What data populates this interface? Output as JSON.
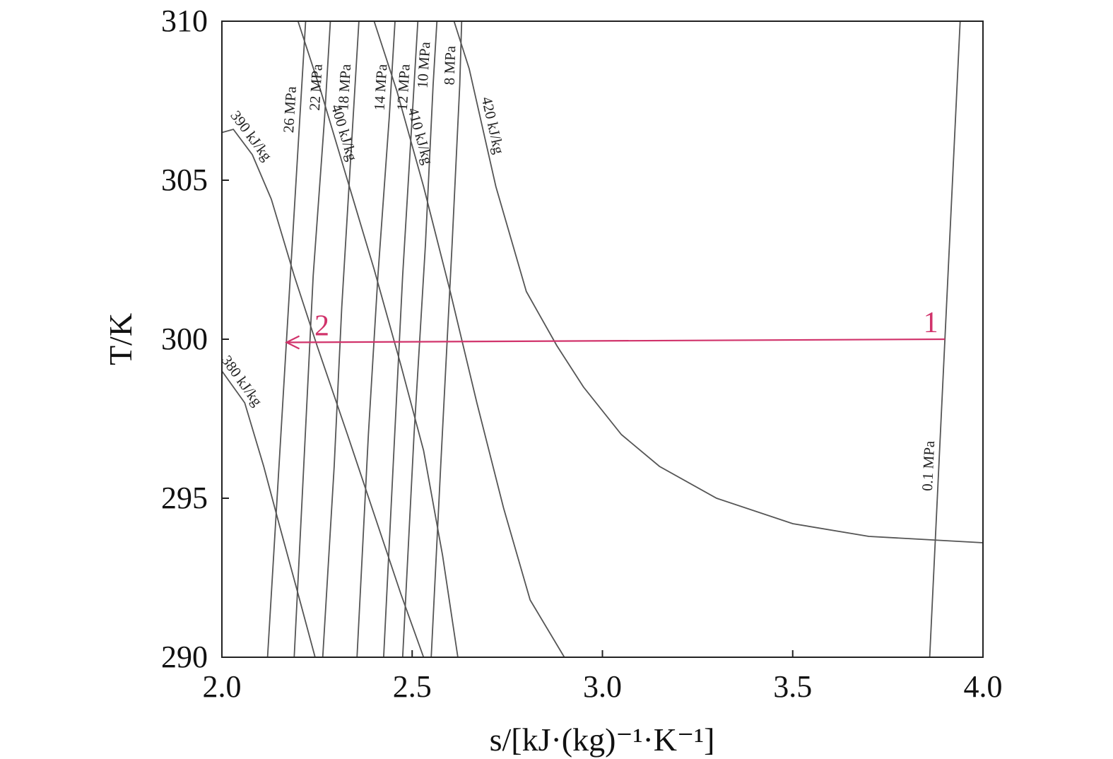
{
  "chart_data": {
    "type": "line",
    "title": "",
    "xlabel": "s/[kJ·(kg)⁻¹·K⁻¹]",
    "ylabel": "T/K",
    "xlim": [
      2.0,
      4.0
    ],
    "ylim": [
      290,
      310
    ],
    "x_ticks": [
      "2.0",
      "2.5",
      "3.0",
      "3.5",
      "4.0"
    ],
    "y_ticks": [
      "290",
      "295",
      "300",
      "305",
      "310"
    ],
    "grid": false,
    "isobars": [
      {
        "label": "0.1 MPa",
        "points": [
          [
            3.86,
            290
          ],
          [
            3.94,
            310
          ]
        ]
      },
      {
        "label": "8 MPa",
        "points": [
          [
            2.55,
            290
          ],
          [
            2.575,
            296
          ],
          [
            2.605,
            303
          ],
          [
            2.625,
            308
          ],
          [
            2.63,
            310
          ]
        ]
      },
      {
        "label": "10 MPa",
        "points": [
          [
            2.475,
            290
          ],
          [
            2.505,
            297
          ],
          [
            2.535,
            303
          ],
          [
            2.555,
            308
          ],
          [
            2.565,
            310
          ]
        ]
      },
      {
        "label": "12 MPa",
        "points": [
          [
            2.425,
            290
          ],
          [
            2.45,
            296
          ],
          [
            2.475,
            302
          ],
          [
            2.5,
            307
          ],
          [
            2.515,
            310
          ]
        ]
      },
      {
        "label": "14 MPa",
        "points": [
          [
            2.355,
            290
          ],
          [
            2.385,
            297
          ],
          [
            2.41,
            302
          ],
          [
            2.44,
            307
          ],
          [
            2.455,
            310
          ]
        ]
      },
      {
        "label": "18 MPa",
        "points": [
          [
            2.265,
            290
          ],
          [
            2.295,
            296
          ],
          [
            2.315,
            301
          ],
          [
            2.345,
            307
          ],
          [
            2.36,
            310
          ]
        ]
      },
      {
        "label": "22 MPa",
        "points": [
          [
            2.19,
            290
          ],
          [
            2.215,
            296
          ],
          [
            2.24,
            302
          ],
          [
            2.27,
            307
          ],
          [
            2.285,
            310
          ]
        ]
      },
      {
        "label": "26 MPa",
        "points": [
          [
            2.12,
            290
          ],
          [
            2.145,
            295
          ],
          [
            2.175,
            301
          ],
          [
            2.2,
            306
          ],
          [
            2.22,
            310
          ]
        ]
      }
    ],
    "isenthalps": [
      {
        "label": "380 kJ/kg",
        "points": [
          [
            2.0,
            299.0
          ],
          [
            2.06,
            298.0
          ],
          [
            2.11,
            296.0
          ],
          [
            2.15,
            294.2
          ],
          [
            2.2,
            292.0
          ],
          [
            2.245,
            290.0
          ]
        ]
      },
      {
        "label": "390 kJ/kg",
        "points": [
          [
            2.0,
            306.5
          ],
          [
            2.03,
            306.6
          ],
          [
            2.08,
            305.8
          ],
          [
            2.13,
            304.4
          ],
          [
            2.19,
            302.0
          ],
          [
            2.25,
            299.8
          ],
          [
            2.33,
            297.0
          ],
          [
            2.4,
            294.5
          ],
          [
            2.47,
            292.0
          ],
          [
            2.53,
            290.0
          ]
        ]
      },
      {
        "label": "400 kJ/kg",
        "points": [
          [
            2.2,
            310
          ],
          [
            2.26,
            307.8
          ],
          [
            2.33,
            305.0
          ],
          [
            2.4,
            302.2
          ],
          [
            2.47,
            299.2
          ],
          [
            2.53,
            296.5
          ],
          [
            2.58,
            293.2
          ],
          [
            2.62,
            290.0
          ]
        ]
      },
      {
        "label": "410 kJ/kg",
        "points": [
          [
            2.4,
            310
          ],
          [
            2.46,
            307.8
          ],
          [
            2.53,
            304.8
          ],
          [
            2.6,
            301.5
          ],
          [
            2.67,
            298.0
          ],
          [
            2.74,
            294.7
          ],
          [
            2.81,
            291.8
          ],
          [
            2.9,
            290.0
          ]
        ]
      },
      {
        "label": "420 kJ/kg",
        "points": [
          [
            2.61,
            310
          ],
          [
            2.65,
            308.5
          ],
          [
            2.72,
            304.8
          ],
          [
            2.8,
            301.5
          ],
          [
            2.88,
            299.8
          ],
          [
            2.95,
            298.5
          ],
          [
            3.05,
            297.0
          ],
          [
            3.15,
            296.0
          ],
          [
            3.3,
            295.0
          ],
          [
            3.5,
            294.2
          ],
          [
            3.7,
            293.8
          ],
          [
            4.0,
            293.6
          ]
        ]
      }
    ],
    "process": {
      "from_label": "1",
      "to_label": "2",
      "from": [
        3.9,
        300.0
      ],
      "to": [
        2.17,
        299.9
      ],
      "color": "#d1336b"
    }
  }
}
